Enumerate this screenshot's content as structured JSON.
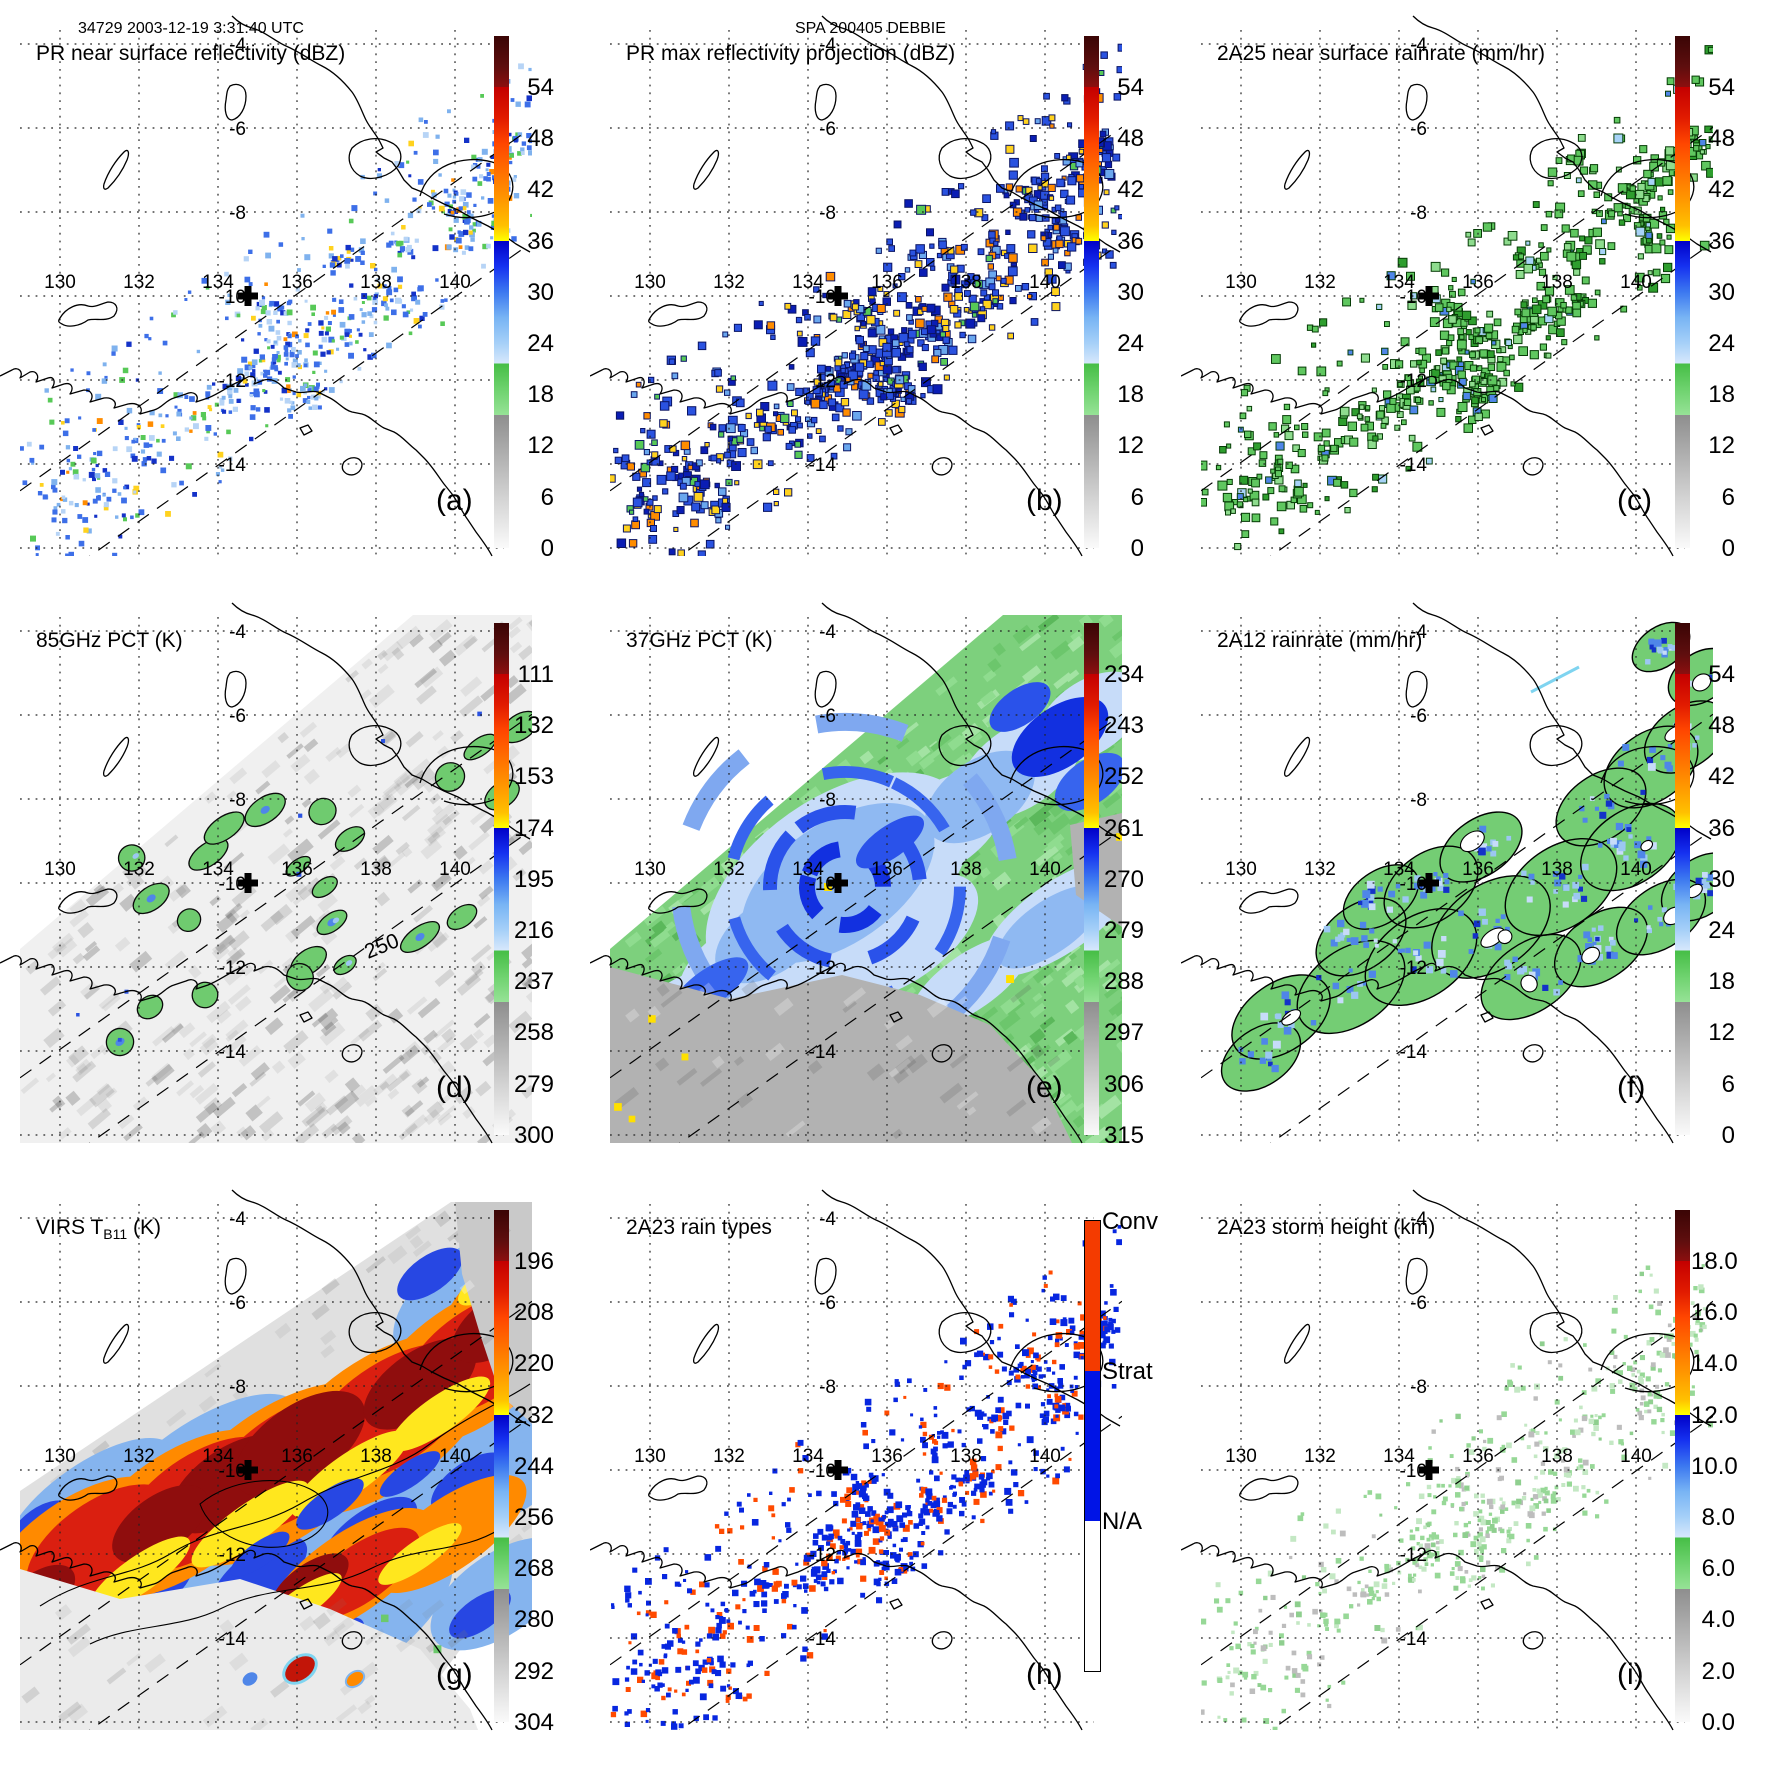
{
  "header": {
    "left": "34729 2003-12-19 3:31:40 UTC",
    "center": "SPA 200405 DEBBIE"
  },
  "axes": {
    "lon_labels": [
      "130",
      "132",
      "134",
      "136",
      "138",
      "140"
    ],
    "lat_labels": [
      "-4",
      "-6",
      "-8",
      "-10",
      "-12",
      "-14"
    ]
  },
  "colors": {
    "accent_green": "#5fc75f",
    "accent_blue": "#2a52e0",
    "accent_orange": "#ff7300",
    "accent_red": "#c40000",
    "convective": "#f43b00",
    "stratiform": "#0014e6",
    "na_white": "#ffffff"
  },
  "panels": [
    {
      "id": "a",
      "letter": "(a)",
      "title": "PR near surface reflectivity (dBZ)",
      "title_sub": "",
      "title_suffix": "",
      "colorbar_ticks": [
        "54",
        "48",
        "42",
        "36",
        "30",
        "24",
        "18",
        "12",
        "6",
        "0"
      ],
      "content_style": "pr_reflectivity"
    },
    {
      "id": "b",
      "letter": "(b)",
      "title": "PR max reflectivity projection (dBZ)",
      "title_sub": "",
      "title_suffix": "",
      "colorbar_ticks": [
        "54",
        "48",
        "42",
        "36",
        "30",
        "24",
        "18",
        "12",
        "6",
        "0"
      ],
      "content_style": "pr_max"
    },
    {
      "id": "c",
      "letter": "(c)",
      "title": "2A25 near surface rainrate (mm/hr)",
      "title_sub": "",
      "title_suffix": "",
      "colorbar_ticks": [
        "54",
        "48",
        "42",
        "36",
        "30",
        "24",
        "18",
        "12",
        "6",
        "0"
      ],
      "content_style": "rainrate_2a25"
    },
    {
      "id": "d",
      "letter": "(d)",
      "title": "85GHz PCT (K)",
      "title_sub": "",
      "title_suffix": "",
      "colorbar_ticks": [
        "111",
        "132",
        "153",
        "174",
        "195",
        "216",
        "237",
        "258",
        "279",
        "300"
      ],
      "content_style": "pct85",
      "contour_label": "250"
    },
    {
      "id": "e",
      "letter": "(e)",
      "title": "37GHz PCT (K)",
      "title_sub": "",
      "title_suffix": "",
      "colorbar_ticks": [
        "234",
        "243",
        "252",
        "261",
        "270",
        "279",
        "288",
        "297",
        "306",
        "315"
      ],
      "content_style": "pct37"
    },
    {
      "id": "f",
      "letter": "(f)",
      "title": "2A12 rainrate (mm/hr)",
      "title_sub": "",
      "title_suffix": "",
      "colorbar_ticks": [
        "54",
        "48",
        "42",
        "36",
        "30",
        "24",
        "18",
        "12",
        "6",
        "0"
      ],
      "content_style": "rainrate_2a12"
    },
    {
      "id": "g",
      "letter": "(g)",
      "title": "VIRS T",
      "title_sub": "B11",
      "title_suffix": " (K)",
      "colorbar_ticks": [
        "196",
        "208",
        "220",
        "232",
        "244",
        "256",
        "268",
        "280",
        "292",
        "304"
      ],
      "content_style": "virs"
    },
    {
      "id": "h",
      "letter": "(h)",
      "title": "2A23 rain types",
      "title_sub": "",
      "title_suffix": "",
      "rain_type_labels": [
        "Conv",
        "Strat",
        "N/A"
      ],
      "rain_type_colors": [
        "#f43b00",
        "#0014e6",
        "#ffffff"
      ],
      "content_style": "raintypes"
    },
    {
      "id": "i",
      "letter": "(i)",
      "title": "2A23 storm height (km)",
      "title_sub": "",
      "title_suffix": "",
      "colorbar_ticks": [
        "18.0",
        "16.0",
        "14.0",
        "12.0",
        "10.0",
        "8.0",
        "6.0",
        "4.0",
        "2.0",
        "0.0"
      ],
      "content_style": "stormheight"
    }
  ],
  "chart_data": {
    "figure_type": "multi-panel satellite/radar heatmap maps",
    "overpass": {
      "orbit": "34729",
      "date": "2003-12-19",
      "time": "3:31:40 UTC",
      "storm": "SPA 200405 DEBBIE"
    },
    "map_extent": {
      "lon_range": [
        128.9,
        141.4
      ],
      "lat_range": [
        -16,
        -4
      ]
    },
    "gridline_lons": [
      130,
      132,
      134,
      136,
      138,
      140
    ],
    "gridline_lats": [
      -4,
      -6,
      -8,
      -10,
      -12,
      -14
    ],
    "storm_center_marker": {
      "lon": 134.8,
      "lat": -10.0
    },
    "panels": [
      {
        "panel": "a",
        "type": "heatmap",
        "title": "PR near surface reflectivity (dBZ)",
        "units": "dBZ",
        "colorbar_ticks": [
          54,
          48,
          42,
          36,
          30,
          24,
          18,
          12,
          6,
          0
        ],
        "legend_position": "right",
        "swath": "PR narrow diagonal SW-NE"
      },
      {
        "panel": "b",
        "type": "heatmap",
        "title": "PR max reflectivity projection (dBZ)",
        "units": "dBZ",
        "colorbar_ticks": [
          54,
          48,
          42,
          36,
          30,
          24,
          18,
          12,
          6,
          0
        ],
        "legend_position": "right",
        "swath": "PR narrow diagonal SW-NE"
      },
      {
        "panel": "c",
        "type": "heatmap",
        "title": "2A25 near surface rainrate (mm/hr)",
        "units": "mm/hr",
        "colorbar_ticks": [
          54,
          48,
          42,
          36,
          30,
          24,
          18,
          12,
          6,
          0
        ],
        "legend_position": "right",
        "swath": "PR narrow diagonal SW-NE"
      },
      {
        "panel": "d",
        "type": "heatmap",
        "title": "85GHz PCT (K)",
        "units": "K",
        "colorbar_ticks": [
          111,
          132,
          153,
          174,
          195,
          216,
          237,
          258,
          279,
          300
        ],
        "contour_label": 250,
        "legend_position": "right",
        "swath": "TMI wide"
      },
      {
        "panel": "e",
        "type": "heatmap",
        "title": "37GHz PCT (K)",
        "units": "K",
        "colorbar_ticks": [
          234,
          243,
          252,
          261,
          270,
          279,
          288,
          297,
          306,
          315
        ],
        "legend_position": "right",
        "swath": "TMI wide"
      },
      {
        "panel": "f",
        "type": "heatmap",
        "title": "2A12 rainrate (mm/hr)",
        "units": "mm/hr",
        "colorbar_ticks": [
          54,
          48,
          42,
          36,
          30,
          24,
          18,
          12,
          6,
          0
        ],
        "legend_position": "right",
        "swath": "TMI wide"
      },
      {
        "panel": "g",
        "type": "heatmap",
        "title": "VIRS TB11 (K)",
        "units": "K",
        "colorbar_ticks": [
          196,
          208,
          220,
          232,
          244,
          256,
          268,
          280,
          292,
          304
        ],
        "legend_position": "right",
        "swath": "VIRS very wide"
      },
      {
        "panel": "h",
        "type": "heatmap",
        "title": "2A23 rain types",
        "categories": [
          "Conv",
          "Strat",
          "N/A"
        ],
        "category_colors": [
          "#f43b00",
          "#0014e6",
          "#ffffff"
        ],
        "legend_position": "right",
        "swath": "PR narrow diagonal SW-NE"
      },
      {
        "panel": "i",
        "type": "heatmap",
        "title": "2A23 storm height (km)",
        "units": "km",
        "colorbar_ticks": [
          18.0,
          16.0,
          14.0,
          12.0,
          10.0,
          8.0,
          6.0,
          4.0,
          2.0,
          0.0
        ],
        "legend_position": "right",
        "swath": "PR narrow diagonal SW-NE"
      }
    ]
  }
}
